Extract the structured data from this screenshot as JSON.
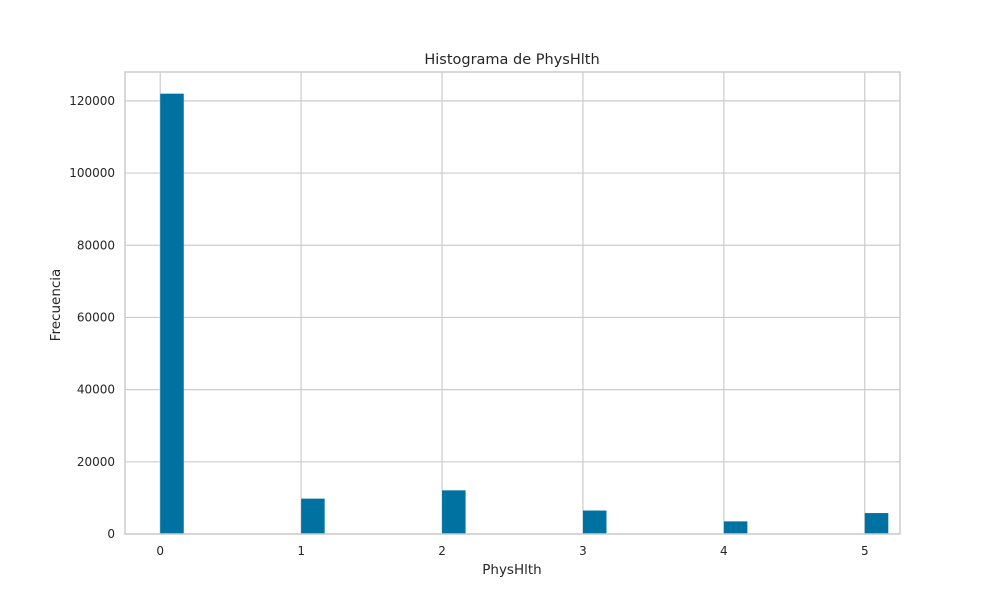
{
  "chart_data": {
    "type": "bar",
    "title": "Histograma de PhysHlth",
    "xlabel": "PhysHlth",
    "ylabel": "Frecuencia",
    "x": [
      0,
      1,
      2,
      3,
      4,
      5
    ],
    "values": [
      122000,
      9800,
      12100,
      6500,
      3500,
      5800
    ],
    "bar_width": 0.167,
    "xlim": [
      -0.25,
      5.25
    ],
    "ylim": [
      0,
      128000
    ],
    "x_ticks": [
      0,
      1,
      2,
      3,
      4,
      5
    ],
    "y_ticks": [
      0,
      20000,
      40000,
      60000,
      80000,
      100000,
      120000
    ],
    "grid": true,
    "bar_color": "#0072a2",
    "grid_color": "#cccccc"
  }
}
